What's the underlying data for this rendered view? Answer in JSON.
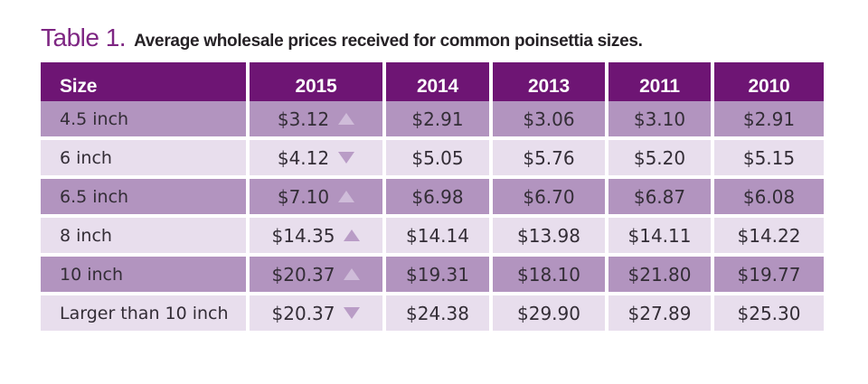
{
  "title": {
    "label": "Table 1.",
    "text": "Average wholesale prices received for common poinsettia sizes."
  },
  "chart_data": {
    "type": "table",
    "title": "Table 1. Average wholesale prices received for common poinsettia sizes.",
    "columns": [
      "Size",
      "2015",
      "2014",
      "2013",
      "2011",
      "2010"
    ],
    "rows": [
      {
        "size": "4.5 inch",
        "price_2015": "$3.12",
        "trend_2015": "up",
        "price_2014": "$2.91",
        "price_2013": "$3.06",
        "price_2011": "$3.10",
        "price_2010": "$2.91"
      },
      {
        "size": "6 inch",
        "price_2015": "$4.12",
        "trend_2015": "down",
        "price_2014": "$5.05",
        "price_2013": "$5.76",
        "price_2011": "$5.20",
        "price_2010": "$5.15"
      },
      {
        "size": "6.5 inch",
        "price_2015": "$7.10",
        "trend_2015": "up",
        "price_2014": "$6.98",
        "price_2013": "$6.70",
        "price_2011": "$6.87",
        "price_2010": "$6.08"
      },
      {
        "size": "8 inch",
        "price_2015": "$14.35",
        "trend_2015": "up",
        "price_2014": "$14.14",
        "price_2013": "$13.98",
        "price_2011": "$14.11",
        "price_2010": "$14.22"
      },
      {
        "size": "10 inch",
        "price_2015": "$20.37",
        "trend_2015": "up",
        "price_2014": "$19.31",
        "price_2013": "$18.10",
        "price_2011": "$21.80",
        "price_2010": "$19.77"
      },
      {
        "size": "Larger than 10 inch",
        "price_2015": "$20.37",
        "trend_2015": "down",
        "price_2014": "$24.38",
        "price_2013": "$29.90",
        "price_2011": "$27.89",
        "price_2010": "$25.30"
      }
    ]
  },
  "colors": {
    "header_bg": "#6e1574",
    "row_dark": "#b294bf",
    "row_light": "#e8deed",
    "arrow_on_dark": "#cfbcd9",
    "arrow_on_light": "#b99cc6",
    "title_accent": "#7e2683",
    "title_text": "#262226",
    "cell_text": "#332d36"
  }
}
